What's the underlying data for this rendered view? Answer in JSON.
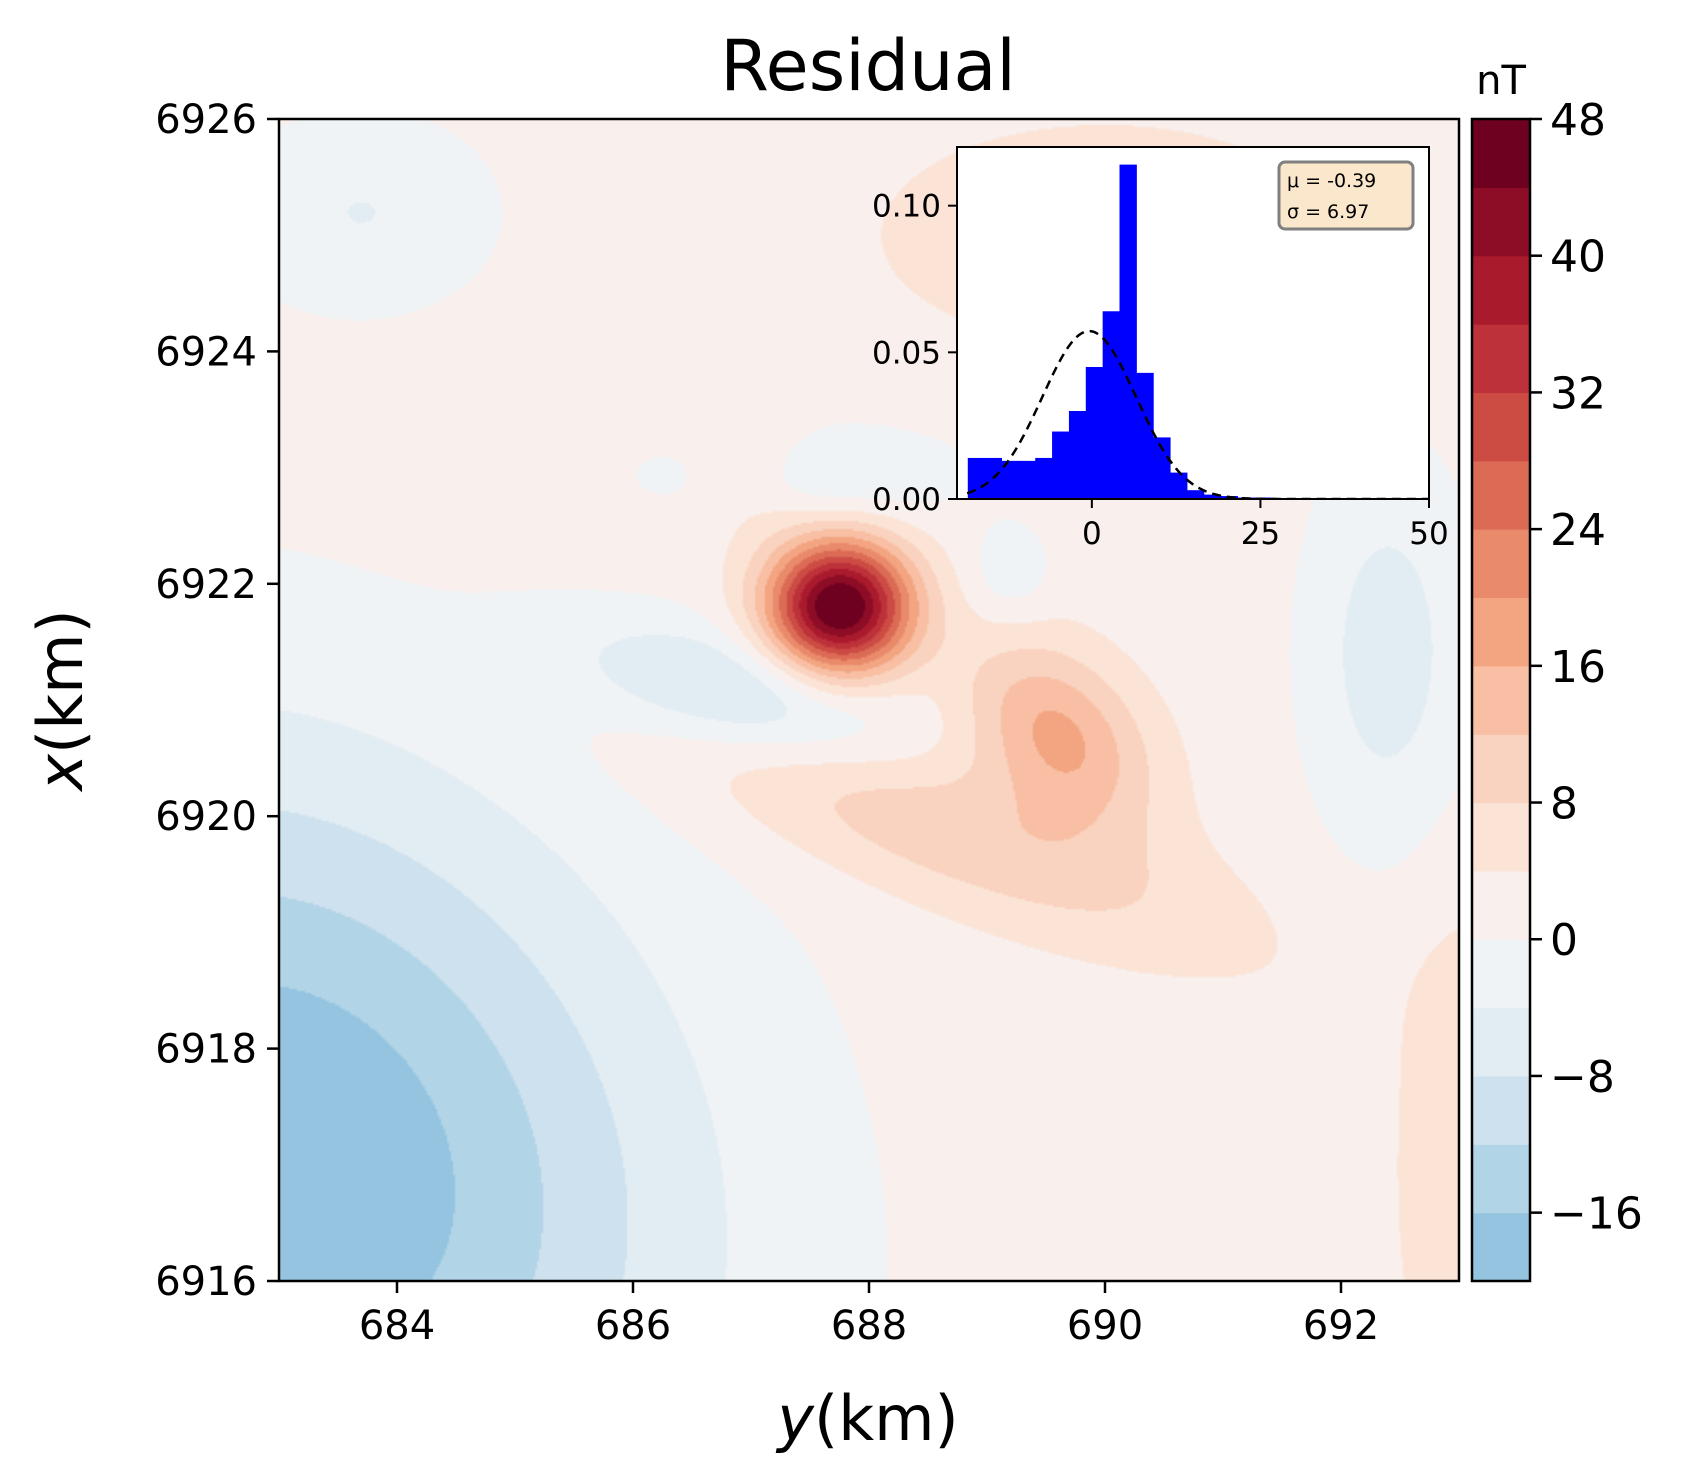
{
  "chart_data": [
    {
      "type": "heatmap",
      "title": "Residual",
      "xlabel_var": "y",
      "xlabel_unit": "(km)",
      "ylabel_var": "x",
      "ylabel_unit": "(km)",
      "xlim": [
        683,
        693
      ],
      "ylim": [
        6916,
        6926
      ],
      "xticks": [
        684,
        686,
        688,
        690,
        692
      ],
      "yticks": [
        6916,
        6918,
        6920,
        6922,
        6924,
        6926
      ],
      "colorbar": {
        "unit": "nT",
        "range": [
          -20,
          48
        ],
        "levels": [
          -20,
          -16,
          -12,
          -8,
          -4,
          0,
          4,
          8,
          12,
          16,
          20,
          24,
          28,
          32,
          36,
          40,
          44,
          48
        ],
        "colors": [
          "#94c4df",
          "#b1d4e7",
          "#cde1ee",
          "#e1ecf3",
          "#f0f3f5",
          "#f9efec",
          "#fbe3d6",
          "#fad3c0",
          "#f8bfa4",
          "#f3a481",
          "#e98a6b",
          "#db6b55",
          "#cc4c44",
          "#bd313a",
          "#aa1a2d",
          "#8c0d25",
          "#6d011f"
        ],
        "tick_values": [
          -16,
          -8,
          0,
          8,
          16,
          24,
          32,
          40,
          48
        ],
        "tick_labels": [
          "−16",
          "−8",
          "0",
          "8",
          "16",
          "24",
          "32",
          "40",
          "48"
        ]
      },
      "features": [
        {
          "kind": "high",
          "center": [
            687.75,
            6921.8
          ],
          "peak": 48,
          "note": "positive anomaly"
        },
        {
          "kind": "low",
          "center": [
            686.8,
            6921.0
          ],
          "min": -10
        },
        {
          "kind": "high",
          "center": [
            689.6,
            6920.7
          ],
          "peak": 15
        },
        {
          "kind": "high",
          "center": [
            687.0,
            6923.0
          ],
          "peak": 6
        },
        {
          "kind": "low",
          "center": [
            683.5,
            6917.5
          ],
          "min": -18
        }
      ]
    },
    {
      "type": "bar",
      "subtype": "histogram_inset",
      "xlim": [
        -20,
        50
      ],
      "ylim": [
        0,
        0.12
      ],
      "xticks": [
        0,
        25,
        50
      ],
      "yticks": [
        0.0,
        0.05,
        0.1
      ],
      "ytick_labels": [
        "0.00",
        "0.05",
        "0.10"
      ],
      "bin_width": 2.5,
      "bin_edges_start": -18.4,
      "densities": [
        0.014,
        0.014,
        0.013,
        0.013,
        0.014,
        0.023,
        0.03,
        0.045,
        0.064,
        0.114,
        0.043,
        0.021,
        0.009,
        0.003,
        0.0015,
        0.001,
        0.0005,
        0.0005,
        0.0003,
        0.0003,
        0.0003,
        0.0002,
        0.0002,
        0.0002,
        0.0002,
        0.0002,
        0.0002
      ],
      "bar_color": "#0000ff",
      "normal_fit": {
        "mu": -0.39,
        "sigma": 6.97,
        "style": "dashed black"
      },
      "annotation": {
        "line1": "μ = -0.39",
        "line2": "σ = 6.97",
        "box_color": "#fbe8cc"
      }
    }
  ]
}
